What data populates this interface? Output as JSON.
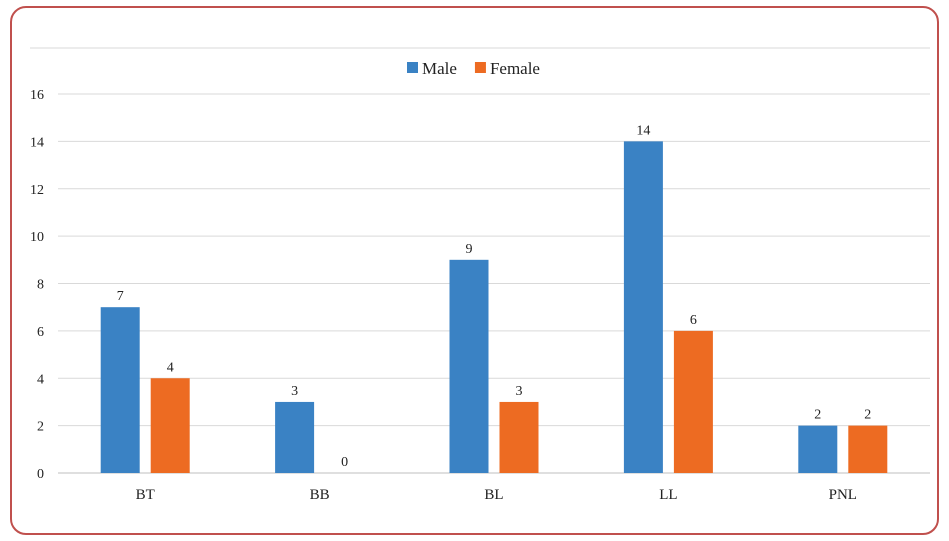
{
  "chart_data": {
    "type": "bar",
    "categories": [
      "BT",
      "BB",
      "BL",
      "LL",
      "PNL"
    ],
    "series": [
      {
        "name": "Male",
        "values": [
          7,
          3,
          9,
          14,
          2
        ],
        "color": "#3a82c4"
      },
      {
        "name": "Female",
        "values": [
          4,
          0,
          3,
          6,
          2
        ],
        "color": "#ed6b22"
      }
    ],
    "ylim": [
      0,
      16
    ],
    "yticks": [
      0,
      2,
      4,
      6,
      8,
      10,
      12,
      14,
      16
    ],
    "grid": true,
    "legend_position": "top-center",
    "data_labels": true
  }
}
